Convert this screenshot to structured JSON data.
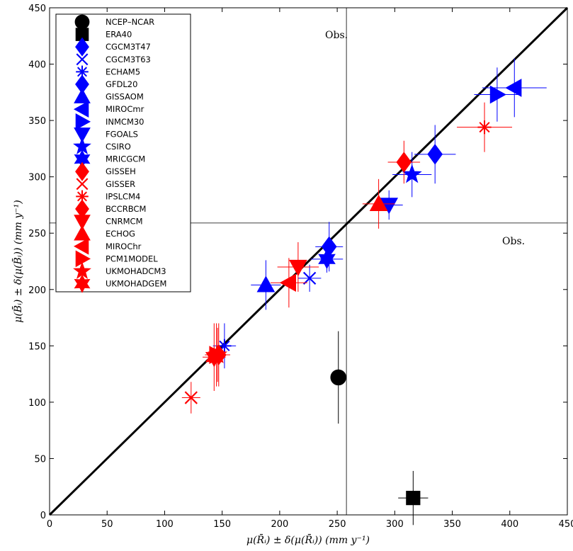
{
  "chart_data": {
    "type": "scatter",
    "xlabel": "μ(R̄ᵢ) ± δ(μ(R̄ᵢ)) (mm y⁻¹)",
    "ylabel": "μ(B̄ᵢ) ± δ(μ(B̄ᵢ)) (mm y⁻¹)",
    "xlim": [
      0,
      450
    ],
    "ylim": [
      0,
      450
    ],
    "xticks": [
      "0",
      "50",
      "100",
      "150",
      "200",
      "250",
      "300",
      "350",
      "400",
      "450"
    ],
    "yticks": [
      "0",
      "50",
      "100",
      "150",
      "200",
      "250",
      "300",
      "350",
      "400",
      "450"
    ],
    "grid": false,
    "legend_position": "top-left",
    "reference_line": "y = x",
    "obs": {
      "x": 258,
      "y": 259,
      "label": "Obs."
    },
    "colors": {
      "reanalysis": "#000000",
      "blue_models": "#0000ff",
      "red_models": "#ff0000"
    },
    "series": [
      {
        "name": "NCEP–NCAR",
        "color": "#000000",
        "marker": "circle",
        "x": 251,
        "y": 122,
        "xerr": 6,
        "yerr": 41
      },
      {
        "name": "ERA40",
        "color": "#000000",
        "marker": "square",
        "x": 316,
        "y": 15,
        "xerr": 13,
        "yerr": 24
      },
      {
        "name": "CGCM3T47",
        "color": "#0000ff",
        "marker": "diamond",
        "x": 335,
        "y": 320,
        "xerr": 18,
        "yerr": 26
      },
      {
        "name": "CGCM3T63",
        "color": "#0000ff",
        "marker": "x",
        "x": 226,
        "y": 210,
        "xerr": 10,
        "yerr": 12
      },
      {
        "name": "ECHAM5",
        "color": "#0000ff",
        "marker": "asterisk",
        "x": 152,
        "y": 150,
        "xerr": 10,
        "yerr": 20
      },
      {
        "name": "GFDL20",
        "color": "#0000ff",
        "marker": "diamond",
        "x": 243,
        "y": 238,
        "xerr": 12,
        "yerr": 22
      },
      {
        "name": "GISSAOM",
        "color": "#0000ff",
        "marker": "triangle-up",
        "x": 188,
        "y": 204,
        "xerr": 13,
        "yerr": 22
      },
      {
        "name": "MIROCmr",
        "color": "#0000ff",
        "marker": "triangle-left",
        "x": 404,
        "y": 379,
        "xerr": 28,
        "yerr": 26
      },
      {
        "name": "INMCM30",
        "color": "#0000ff",
        "marker": "triangle-right",
        "x": 389,
        "y": 373,
        "xerr": 20,
        "yerr": 24
      },
      {
        "name": "FGOALS",
        "color": "#0000ff",
        "marker": "triangle-down",
        "x": 295,
        "y": 275,
        "xerr": 12,
        "yerr": 13
      },
      {
        "name": "CSIRO",
        "color": "#0000ff",
        "marker": "pentagram",
        "x": 315,
        "y": 302,
        "xerr": 17,
        "yerr": 20
      },
      {
        "name": "MRICGCM",
        "color": "#0000ff",
        "marker": "hexagram",
        "x": 241,
        "y": 227,
        "xerr": 14,
        "yerr": 12
      },
      {
        "name": "GISSEH",
        "color": "#ff0000",
        "marker": "diamond",
        "x": 308,
        "y": 313,
        "xerr": 14,
        "yerr": 19
      },
      {
        "name": "GISSER",
        "color": "#ff0000",
        "marker": "x",
        "x": 123,
        "y": 104,
        "xerr": 8,
        "yerr": 14
      },
      {
        "name": "IPSLCM4",
        "color": "#ff0000",
        "marker": "asterisk",
        "x": 378,
        "y": 344,
        "xerr": 24,
        "yerr": 22
      },
      {
        "name": "BCCRBCM",
        "color": "#ff0000",
        "marker": "diamond",
        "x": 147,
        "y": 142,
        "xerr": 10,
        "yerr": 28
      },
      {
        "name": "CNRMCM",
        "color": "#ff0000",
        "marker": "triangle-down",
        "x": 216,
        "y": 220,
        "xerr": 18,
        "yerr": 22
      },
      {
        "name": "ECHOG",
        "color": "#ff0000",
        "marker": "triangle-up",
        "x": 286,
        "y": 276,
        "xerr": 14,
        "yerr": 22
      },
      {
        "name": "MIROChr",
        "color": "#ff0000",
        "marker": "triangle-left",
        "x": 208,
        "y": 206,
        "xerr": 16,
        "yerr": 22
      },
      {
        "name": "PCM1MODEL",
        "color": "#ff0000",
        "marker": "triangle-right",
        "x": 145,
        "y": 142,
        "xerr": 10,
        "yerr": 28
      },
      {
        "name": "UKMOHADCM3",
        "color": "#ff0000",
        "marker": "pentagram",
        "x": 146,
        "y": 142,
        "xerr": 10,
        "yerr": 24
      },
      {
        "name": "UKMOHADGEM",
        "color": "#ff0000",
        "marker": "hexagram",
        "x": 143,
        "y": 140,
        "xerr": 10,
        "yerr": 30
      }
    ]
  }
}
